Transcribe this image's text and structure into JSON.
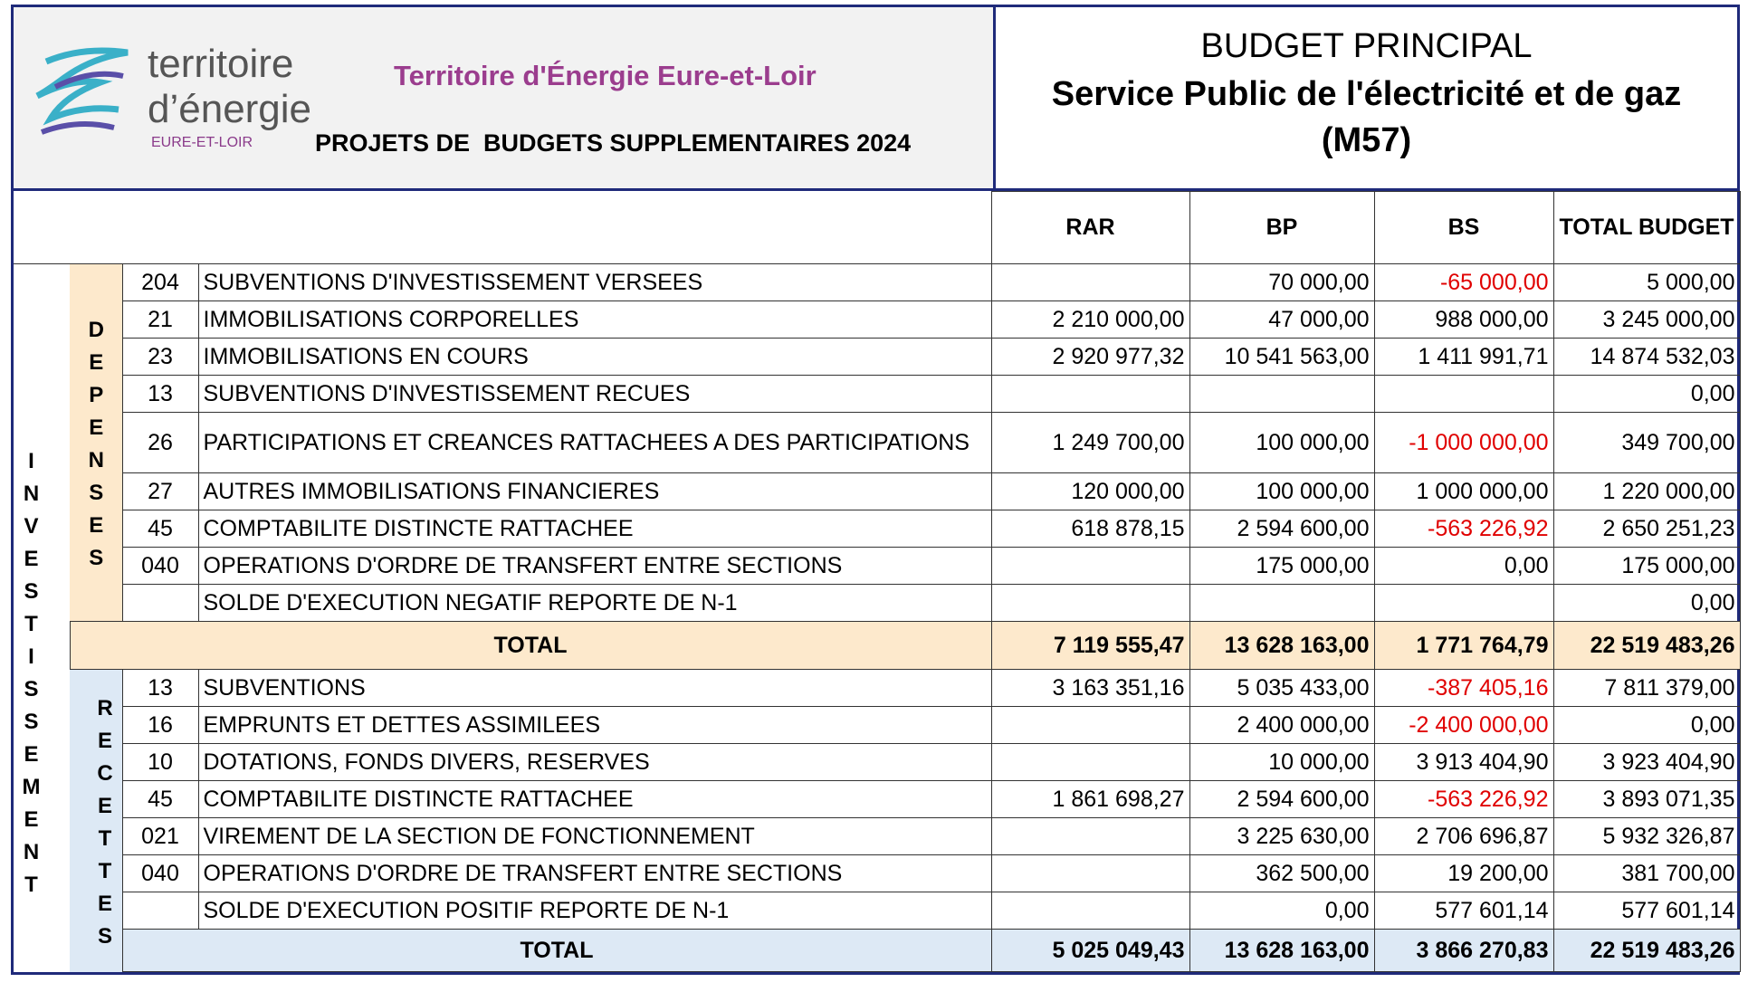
{
  "header": {
    "logo": {
      "line1": "territoire",
      "line2": "d’énergie",
      "line3": "EURE-ET-LOIR"
    },
    "organisation": "Territoire d'Énergie Eure-et-Loir",
    "subtitle": "PROJETS DE  BUDGETS SUPPLEMENTAIRES 2024",
    "budget": "BUDGET PRINCIPAL",
    "service": "Service Public de l'électricité et de gaz",
    "code": "(M57)"
  },
  "table": {
    "section": "INVESTISSEMENT",
    "columns": [
      "RAR",
      "BP",
      "BS",
      "TOTAL BUDGET"
    ],
    "depenses": {
      "label": "DEPENSES",
      "rows": [
        [
          "204",
          "SUBVENTIONS D'INVESTISSEMENT VERSEES",
          null,
          "70 000,00",
          "-65 000,00",
          "5 000,00"
        ],
        [
          "21",
          "IMMOBILISATIONS CORPORELLES",
          "2 210 000,00",
          "47 000,00",
          "988 000,00",
          "3 245 000,00"
        ],
        [
          "23",
          "IMMOBILISATIONS EN COURS",
          "2 920 977,32",
          "10 541 563,00",
          "1 411 991,71",
          "14 874 532,03"
        ],
        [
          "13",
          "SUBVENTIONS D'INVESTISSEMENT RECUES",
          null,
          null,
          null,
          "0,00"
        ],
        [
          "26",
          "PARTICIPATIONS ET CREANCES RATTACHEES A DES PARTICIPATIONS",
          "1 249 700,00",
          "100 000,00",
          "-1 000 000,00",
          "349 700,00"
        ],
        [
          "27",
          "AUTRES IMMOBILISATIONS FINANCIERES",
          "120 000,00",
          "100 000,00",
          "1 000 000,00",
          "1 220 000,00"
        ],
        [
          "45",
          "COMPTABILITE DISTINCTE RATTACHEE",
          "618 878,15",
          "2 594 600,00",
          "-563 226,92",
          "2 650 251,23"
        ],
        [
          "040",
          "OPERATIONS D'ORDRE DE TRANSFERT ENTRE SECTIONS",
          null,
          "175 000,00",
          "0,00",
          "175 000,00"
        ],
        [
          null,
          "SOLDE D'EXECUTION NEGATIF REPORTE DE N-1",
          null,
          null,
          null,
          "0,00"
        ]
      ],
      "total": [
        "TOTAL",
        "7 119 555,47",
        "13 628 163,00",
        "1 771 764,79",
        "22 519 483,26"
      ]
    },
    "recettes": {
      "label": "RECETTES",
      "rows": [
        [
          "13",
          "SUBVENTIONS",
          "3 163 351,16",
          "5 035 433,00",
          "-387 405,16",
          "7 811 379,00"
        ],
        [
          "16",
          "EMPRUNTS ET DETTES ASSIMILEES",
          null,
          "2 400 000,00",
          "-2 400 000,00",
          "0,00"
        ],
        [
          "10",
          "DOTATIONS, FONDS DIVERS, RESERVES",
          null,
          "10 000,00",
          "3 913 404,90",
          "3 923 404,90"
        ],
        [
          "45",
          "COMPTABILITE DISTINCTE RATTACHEE",
          "1 861 698,27",
          "2 594 600,00",
          "-563 226,92",
          "3 893 071,35"
        ],
        [
          "021",
          "VIREMENT DE LA SECTION DE FONCTIONNEMENT",
          null,
          "3 225 630,00",
          "2 706 696,87",
          "5 932 326,87"
        ],
        [
          "040",
          "OPERATIONS D'ORDRE DE TRANSFERT ENTRE SECTIONS",
          null,
          "362 500,00",
          "19 200,00",
          "381 700,00"
        ],
        [
          null,
          "SOLDE D'EXECUTION POSITIF REPORTE DE N-1",
          null,
          "0,00",
          "577 601,14",
          "577 601,14"
        ]
      ],
      "total": [
        "TOTAL",
        "5 025 049,43",
        "13 628 163,00",
        "3 866 270,83",
        "22 519 483,26"
      ]
    }
  }
}
